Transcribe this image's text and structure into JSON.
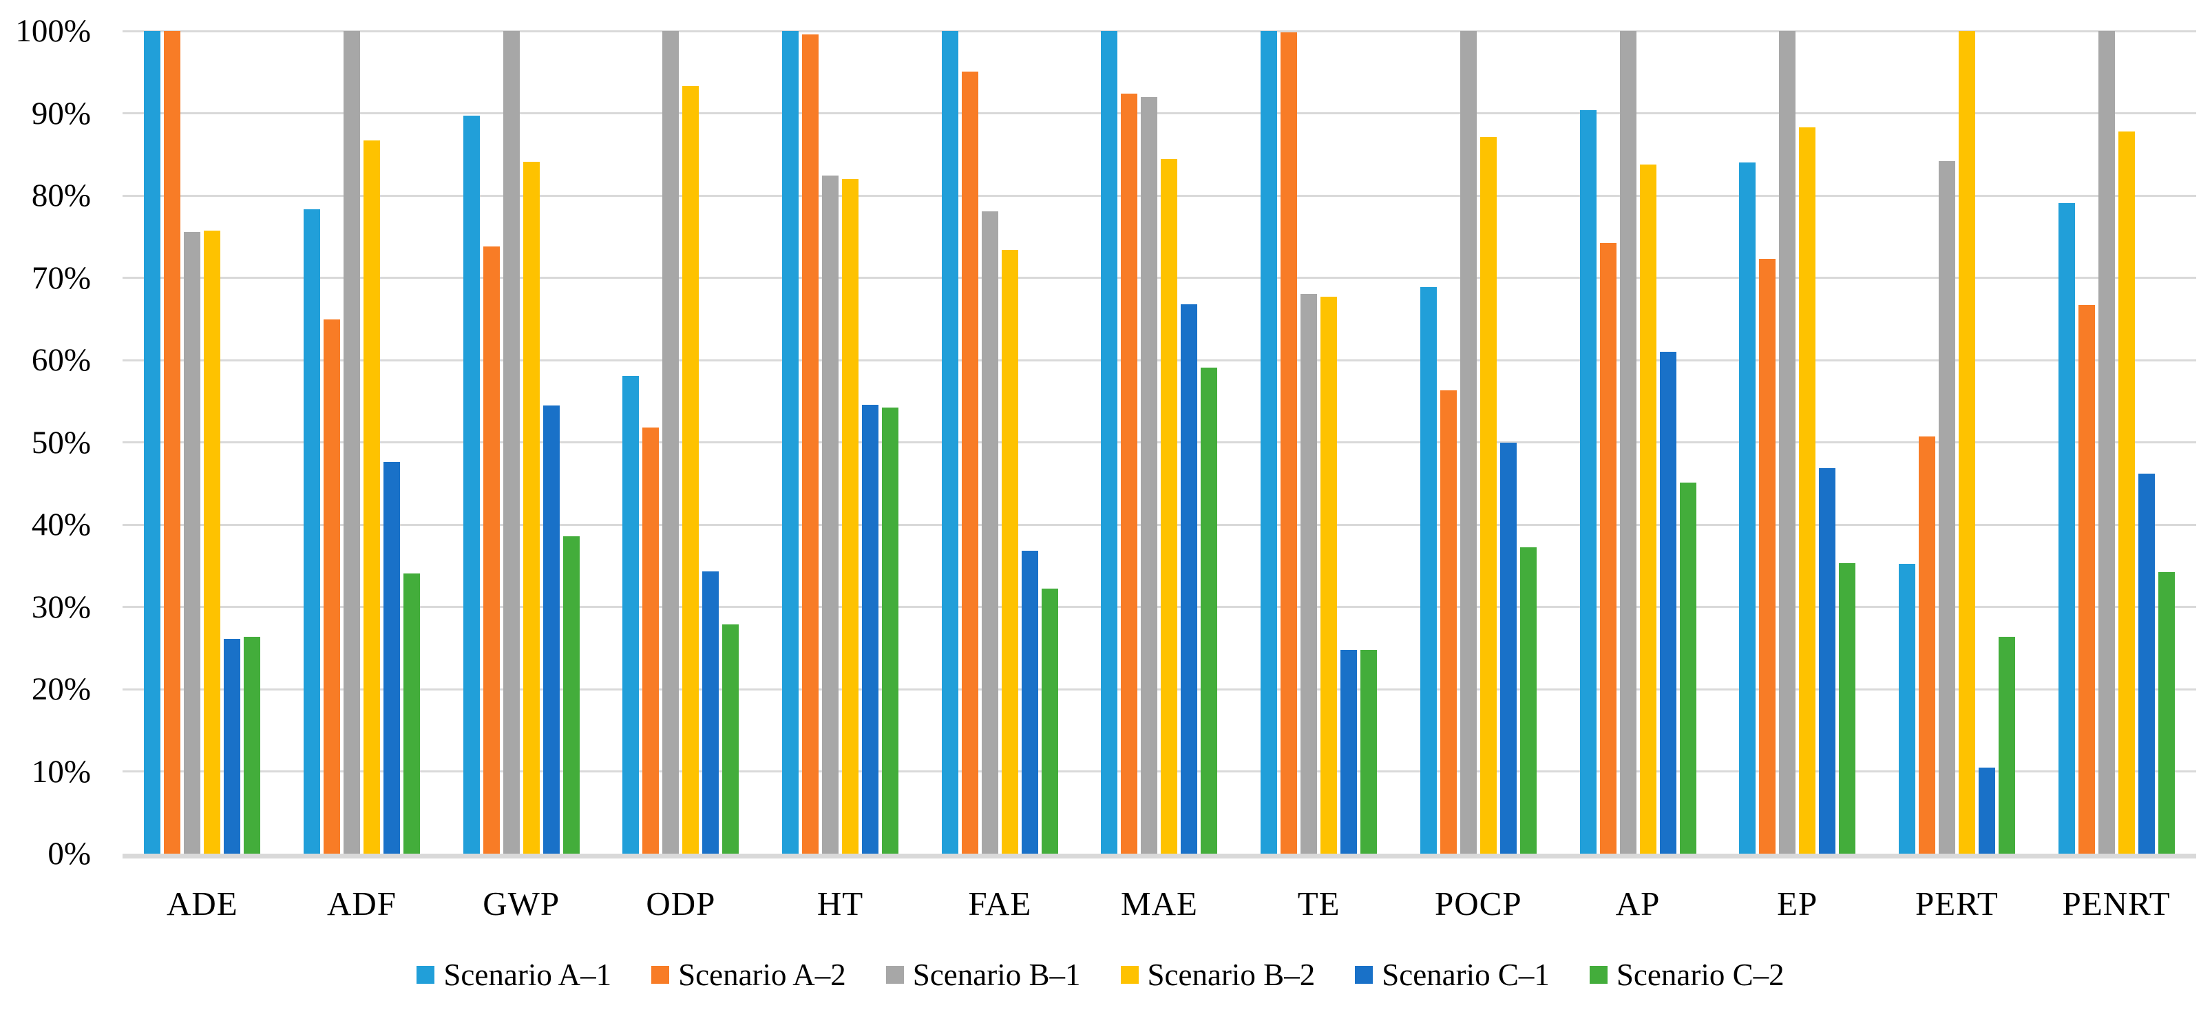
{
  "chart_data": {
    "type": "bar",
    "title": "",
    "categories": [
      "ADE",
      "ADF",
      "GWP",
      "ODP",
      "HT",
      "FAE",
      "MAE",
      "TE",
      "POCP",
      "AP",
      "EP",
      "PERT",
      "PENRT"
    ],
    "series": [
      {
        "name": "Scenario A–1",
        "color": "#219FD9",
        "values": [
          100,
          78.3,
          89.7,
          58.1,
          100,
          100,
          100,
          100,
          68.9,
          90.4,
          84.0,
          35.2,
          79.1
        ]
      },
      {
        "name": "Scenario A–2",
        "color": "#F87C26",
        "values": [
          100,
          64.9,
          73.8,
          51.8,
          99.6,
          95.1,
          92.4,
          99.8,
          56.3,
          74.2,
          72.3,
          50.7,
          66.7
        ]
      },
      {
        "name": "Scenario B–1",
        "color": "#A7A7A7",
        "values": [
          75.6,
          100,
          100,
          100,
          82.4,
          78.1,
          92.0,
          68.0,
          100,
          100,
          100,
          84.2,
          100
        ]
      },
      {
        "name": "Scenario B–2",
        "color": "#FEC200",
        "values": [
          75.7,
          86.7,
          84.1,
          93.3,
          82.0,
          73.4,
          84.4,
          67.7,
          87.1,
          83.8,
          88.3,
          100,
          87.8
        ]
      },
      {
        "name": "Scenario C–1",
        "color": "#1971C8",
        "values": [
          26.1,
          47.6,
          54.5,
          34.3,
          54.6,
          36.8,
          66.8,
          24.8,
          50.0,
          61.0,
          46.9,
          10.5,
          46.2
        ]
      },
      {
        "name": "Scenario C–2",
        "color": "#43AD3B",
        "values": [
          26.4,
          34.1,
          38.6,
          27.9,
          54.2,
          32.2,
          59.1,
          24.8,
          37.2,
          45.1,
          35.3,
          26.4,
          34.2
        ]
      }
    ],
    "y_axis": {
      "ticks": [
        "100%",
        "90%",
        "80%",
        "70%",
        "60%",
        "50%",
        "40%",
        "30%",
        "20%",
        "10%",
        "0%"
      ],
      "min": 0,
      "max": 100,
      "step": 10
    },
    "grid": true,
    "legend_position": "bottom",
    "colors": {
      "gridline": "#D9D9D9",
      "background": "#FFFFFF",
      "text": "#000000"
    }
  }
}
